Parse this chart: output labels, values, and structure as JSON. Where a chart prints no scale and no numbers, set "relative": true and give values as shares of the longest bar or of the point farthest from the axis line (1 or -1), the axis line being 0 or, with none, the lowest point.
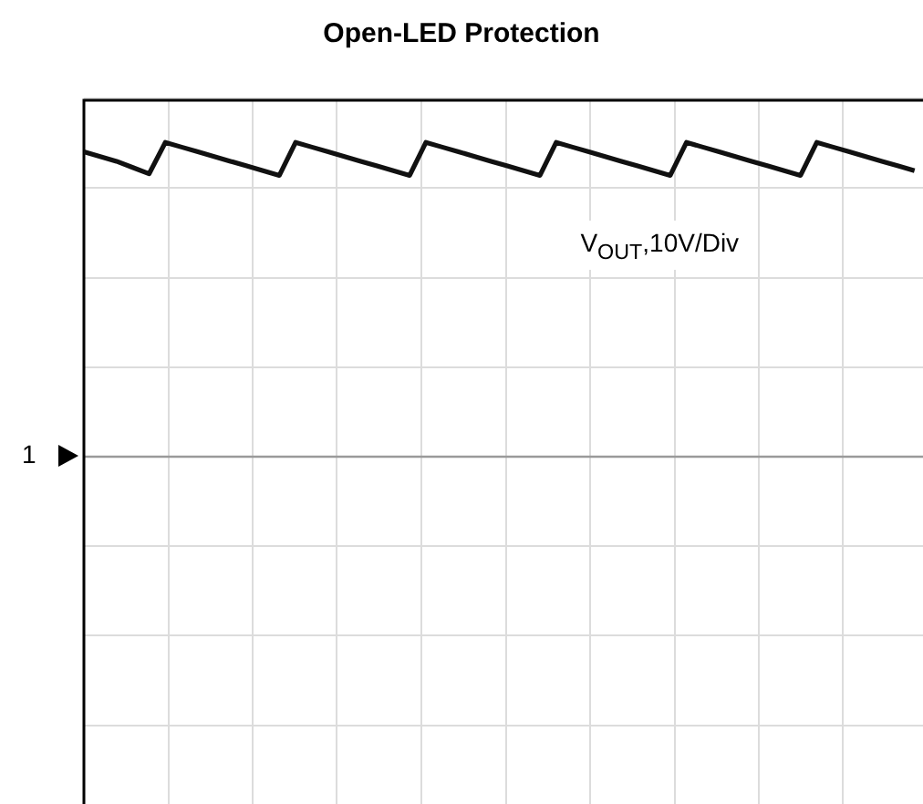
{
  "chart_data": {
    "type": "line",
    "title": "Open-LED Protection",
    "relative": true,
    "grid": true,
    "marker": "none",
    "line_style": "solid",
    "legend": false,
    "tick_labels": false,
    "categories": [
      null,
      null,
      null,
      null,
      null,
      null,
      null,
      null,
      null,
      null,
      null,
      null,
      null,
      null,
      null,
      null,
      null,
      null,
      null,
      null,
      null,
      null,
      null,
      null,
      null,
      null,
      null,
      null,
      null,
      null,
      null,
      null,
      null,
      null,
      null,
      null,
      null,
      null,
      null,
      null,
      null,
      null,
      null,
      null,
      null,
      null,
      null,
      null,
      null,
      null,
      null,
      null
    ],
    "series": [
      {
        "color": "#111111",
        "values": [
          0.97,
          0.955,
          0.94,
          0.92,
          0.9,
          1.0,
          0.985,
          0.97,
          0.955,
          0.94,
          0.925,
          0.91,
          0.895,
          1.0,
          0.985,
          0.97,
          0.955,
          0.94,
          0.925,
          0.91,
          0.895,
          1.0,
          0.985,
          0.97,
          0.955,
          0.94,
          0.925,
          0.91,
          0.895,
          1.0,
          0.985,
          0.97,
          0.955,
          0.94,
          0.925,
          0.91,
          0.895,
          1.0,
          0.985,
          0.97,
          0.955,
          0.94,
          0.925,
          0.91,
          0.895,
          1.0,
          0.985,
          0.97,
          0.955,
          0.94,
          0.925,
          0.91
        ]
      }
    ],
    "ref_lines": [
      {
        "axis": "y",
        "value": 0,
        "color": "#9a9a9a"
      }
    ],
    "annotations": [
      "V$_{OUT}$,10V/Div",
      "1"
    ]
  }
}
